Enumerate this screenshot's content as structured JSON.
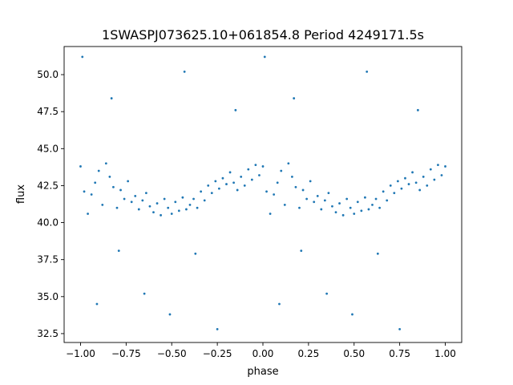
{
  "chart_data": {
    "type": "scatter",
    "title": "1SWASPJ073625.10+061854.8 Period 4249171.5s",
    "xlabel": "phase",
    "ylabel": "flux",
    "xlim": [
      -1.09,
      1.09
    ],
    "ylim": [
      31.9,
      51.9
    ],
    "x_ticks": [
      -1.0,
      -0.75,
      -0.5,
      -0.25,
      0.0,
      0.25,
      0.5,
      0.75,
      1.0
    ],
    "x_tick_labels": [
      "−1.00",
      "−0.75",
      "−0.50",
      "−0.25",
      "0.00",
      "0.25",
      "0.50",
      "0.75",
      "1.00"
    ],
    "y_ticks": [
      32.5,
      35.0,
      37.5,
      40.0,
      42.5,
      45.0,
      47.5,
      50.0
    ],
    "y_tick_labels": [
      "32.5",
      "35.0",
      "37.5",
      "40.0",
      "42.5",
      "45.0",
      "47.5",
      "50.0"
    ],
    "grid": false,
    "marker_color": "#1f77b4",
    "series": [
      {
        "points": [
          [
            -1.0,
            43.8
          ],
          [
            -0.98,
            42.1
          ],
          [
            -0.96,
            40.6
          ],
          [
            -0.94,
            41.9
          ],
          [
            -0.92,
            42.7
          ],
          [
            -0.9,
            43.5
          ],
          [
            -0.88,
            41.2
          ],
          [
            -0.86,
            44.0
          ],
          [
            -0.84,
            43.1
          ],
          [
            -0.82,
            42.4
          ],
          [
            -0.8,
            41.0
          ],
          [
            -0.78,
            42.2
          ],
          [
            -0.76,
            41.6
          ],
          [
            -0.74,
            42.8
          ],
          [
            -0.72,
            41.4
          ],
          [
            -0.7,
            41.8
          ],
          [
            -0.68,
            40.9
          ],
          [
            -0.66,
            41.5
          ],
          [
            -0.64,
            42.0
          ],
          [
            -0.62,
            41.1
          ],
          [
            -0.6,
            40.7
          ],
          [
            -0.58,
            41.3
          ],
          [
            -0.56,
            40.5
          ],
          [
            -0.54,
            41.6
          ],
          [
            -0.52,
            41.0
          ],
          [
            -0.5,
            40.6
          ],
          [
            -0.48,
            41.4
          ],
          [
            -0.46,
            40.8
          ],
          [
            -0.44,
            41.7
          ],
          [
            -0.42,
            40.9
          ],
          [
            -0.4,
            41.2
          ],
          [
            -0.38,
            41.6
          ],
          [
            -0.36,
            41.0
          ],
          [
            -0.34,
            42.1
          ],
          [
            -0.32,
            41.5
          ],
          [
            -0.3,
            42.5
          ],
          [
            -0.28,
            42.0
          ],
          [
            -0.26,
            42.8
          ],
          [
            -0.24,
            42.3
          ],
          [
            -0.22,
            43.0
          ],
          [
            -0.2,
            42.6
          ],
          [
            -0.18,
            43.4
          ],
          [
            -0.16,
            42.7
          ],
          [
            -0.14,
            42.2
          ],
          [
            -0.12,
            43.1
          ],
          [
            -0.1,
            42.5
          ],
          [
            -0.08,
            43.6
          ],
          [
            -0.06,
            42.9
          ],
          [
            -0.04,
            43.9
          ],
          [
            -0.02,
            43.2
          ],
          [
            0.0,
            43.8
          ],
          [
            0.02,
            42.1
          ],
          [
            0.04,
            40.6
          ],
          [
            0.06,
            41.9
          ],
          [
            0.08,
            42.7
          ],
          [
            0.1,
            43.5
          ],
          [
            0.12,
            41.2
          ],
          [
            0.14,
            44.0
          ],
          [
            0.16,
            43.1
          ],
          [
            0.18,
            42.4
          ],
          [
            0.2,
            41.0
          ],
          [
            0.22,
            42.2
          ],
          [
            0.24,
            41.6
          ],
          [
            0.26,
            42.8
          ],
          [
            0.28,
            41.4
          ],
          [
            0.3,
            41.8
          ],
          [
            0.32,
            40.9
          ],
          [
            0.34,
            41.5
          ],
          [
            0.36,
            42.0
          ],
          [
            0.38,
            41.1
          ],
          [
            0.4,
            40.7
          ],
          [
            0.42,
            41.3
          ],
          [
            0.44,
            40.5
          ],
          [
            0.46,
            41.6
          ],
          [
            0.48,
            41.0
          ],
          [
            0.5,
            40.6
          ],
          [
            0.52,
            41.4
          ],
          [
            0.54,
            40.8
          ],
          [
            0.56,
            41.7
          ],
          [
            0.58,
            40.9
          ],
          [
            0.6,
            41.2
          ],
          [
            0.62,
            41.6
          ],
          [
            0.64,
            41.0
          ],
          [
            0.66,
            42.1
          ],
          [
            0.68,
            41.5
          ],
          [
            0.7,
            42.5
          ],
          [
            0.72,
            42.0
          ],
          [
            0.74,
            42.8
          ],
          [
            0.76,
            42.3
          ],
          [
            0.78,
            43.0
          ],
          [
            0.8,
            42.6
          ],
          [
            0.82,
            43.4
          ],
          [
            0.84,
            42.7
          ],
          [
            0.86,
            42.2
          ],
          [
            0.88,
            43.1
          ],
          [
            0.9,
            42.5
          ],
          [
            0.92,
            43.6
          ],
          [
            0.94,
            42.9
          ],
          [
            0.96,
            43.9
          ],
          [
            0.98,
            43.2
          ],
          [
            1.0,
            43.8
          ],
          [
            -0.99,
            51.2
          ],
          [
            0.01,
            51.2
          ],
          [
            -0.83,
            48.4
          ],
          [
            0.17,
            48.4
          ],
          [
            -0.43,
            50.2
          ],
          [
            0.57,
            50.2
          ],
          [
            -0.15,
            47.6
          ],
          [
            0.85,
            47.6
          ],
          [
            -0.91,
            34.5
          ],
          [
            0.09,
            34.5
          ],
          [
            -0.51,
            33.8
          ],
          [
            0.49,
            33.8
          ],
          [
            -0.25,
            32.8
          ],
          [
            0.75,
            32.8
          ],
          [
            -0.65,
            35.2
          ],
          [
            0.35,
            35.2
          ],
          [
            -0.37,
            37.9
          ],
          [
            0.63,
            37.9
          ],
          [
            -0.79,
            38.1
          ],
          [
            0.21,
            38.1
          ]
        ]
      }
    ]
  }
}
